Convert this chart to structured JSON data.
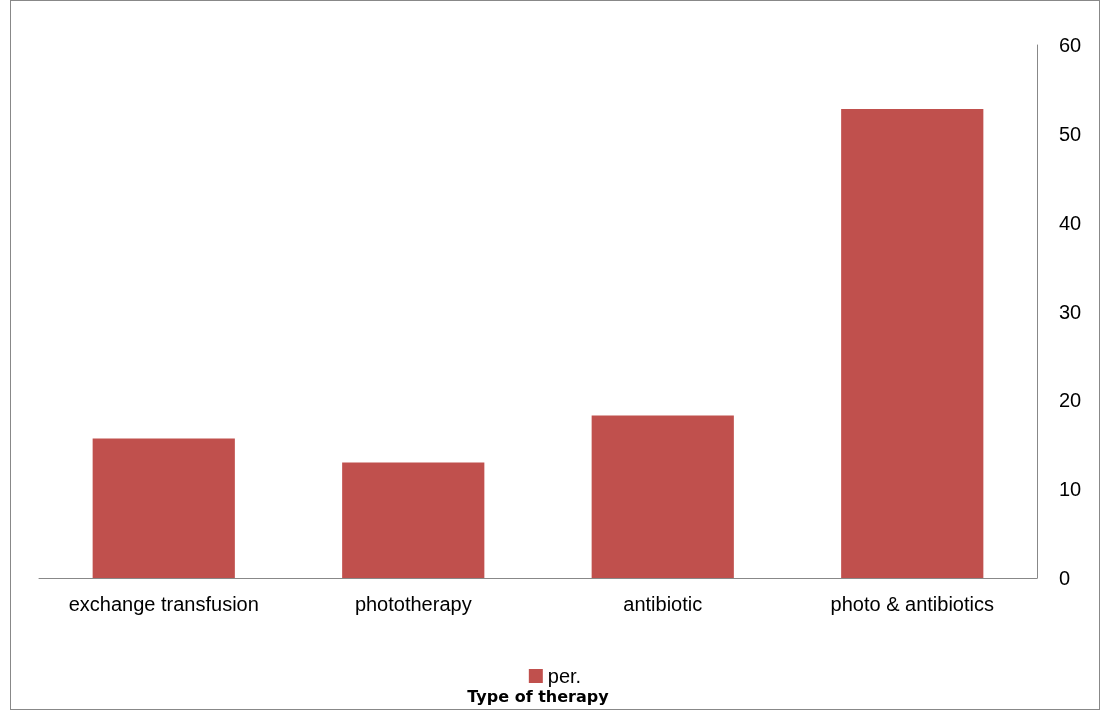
{
  "chart_data": {
    "type": "bar",
    "xlabel": "Type of therapy",
    "categories": [
      "exchange transfusion",
      "phototherapy",
      "antibiotic",
      "photo & antibiotics"
    ],
    "series": [
      {
        "name": "per.",
        "color": "#c0504d",
        "values": [
          15.7,
          13.0,
          18.3,
          52.8
        ]
      }
    ],
    "ylim": [
      0,
      60
    ],
    "yticks": [
      0,
      10,
      20,
      30,
      40,
      50,
      60
    ],
    "grid": false,
    "legend": "bottom"
  }
}
